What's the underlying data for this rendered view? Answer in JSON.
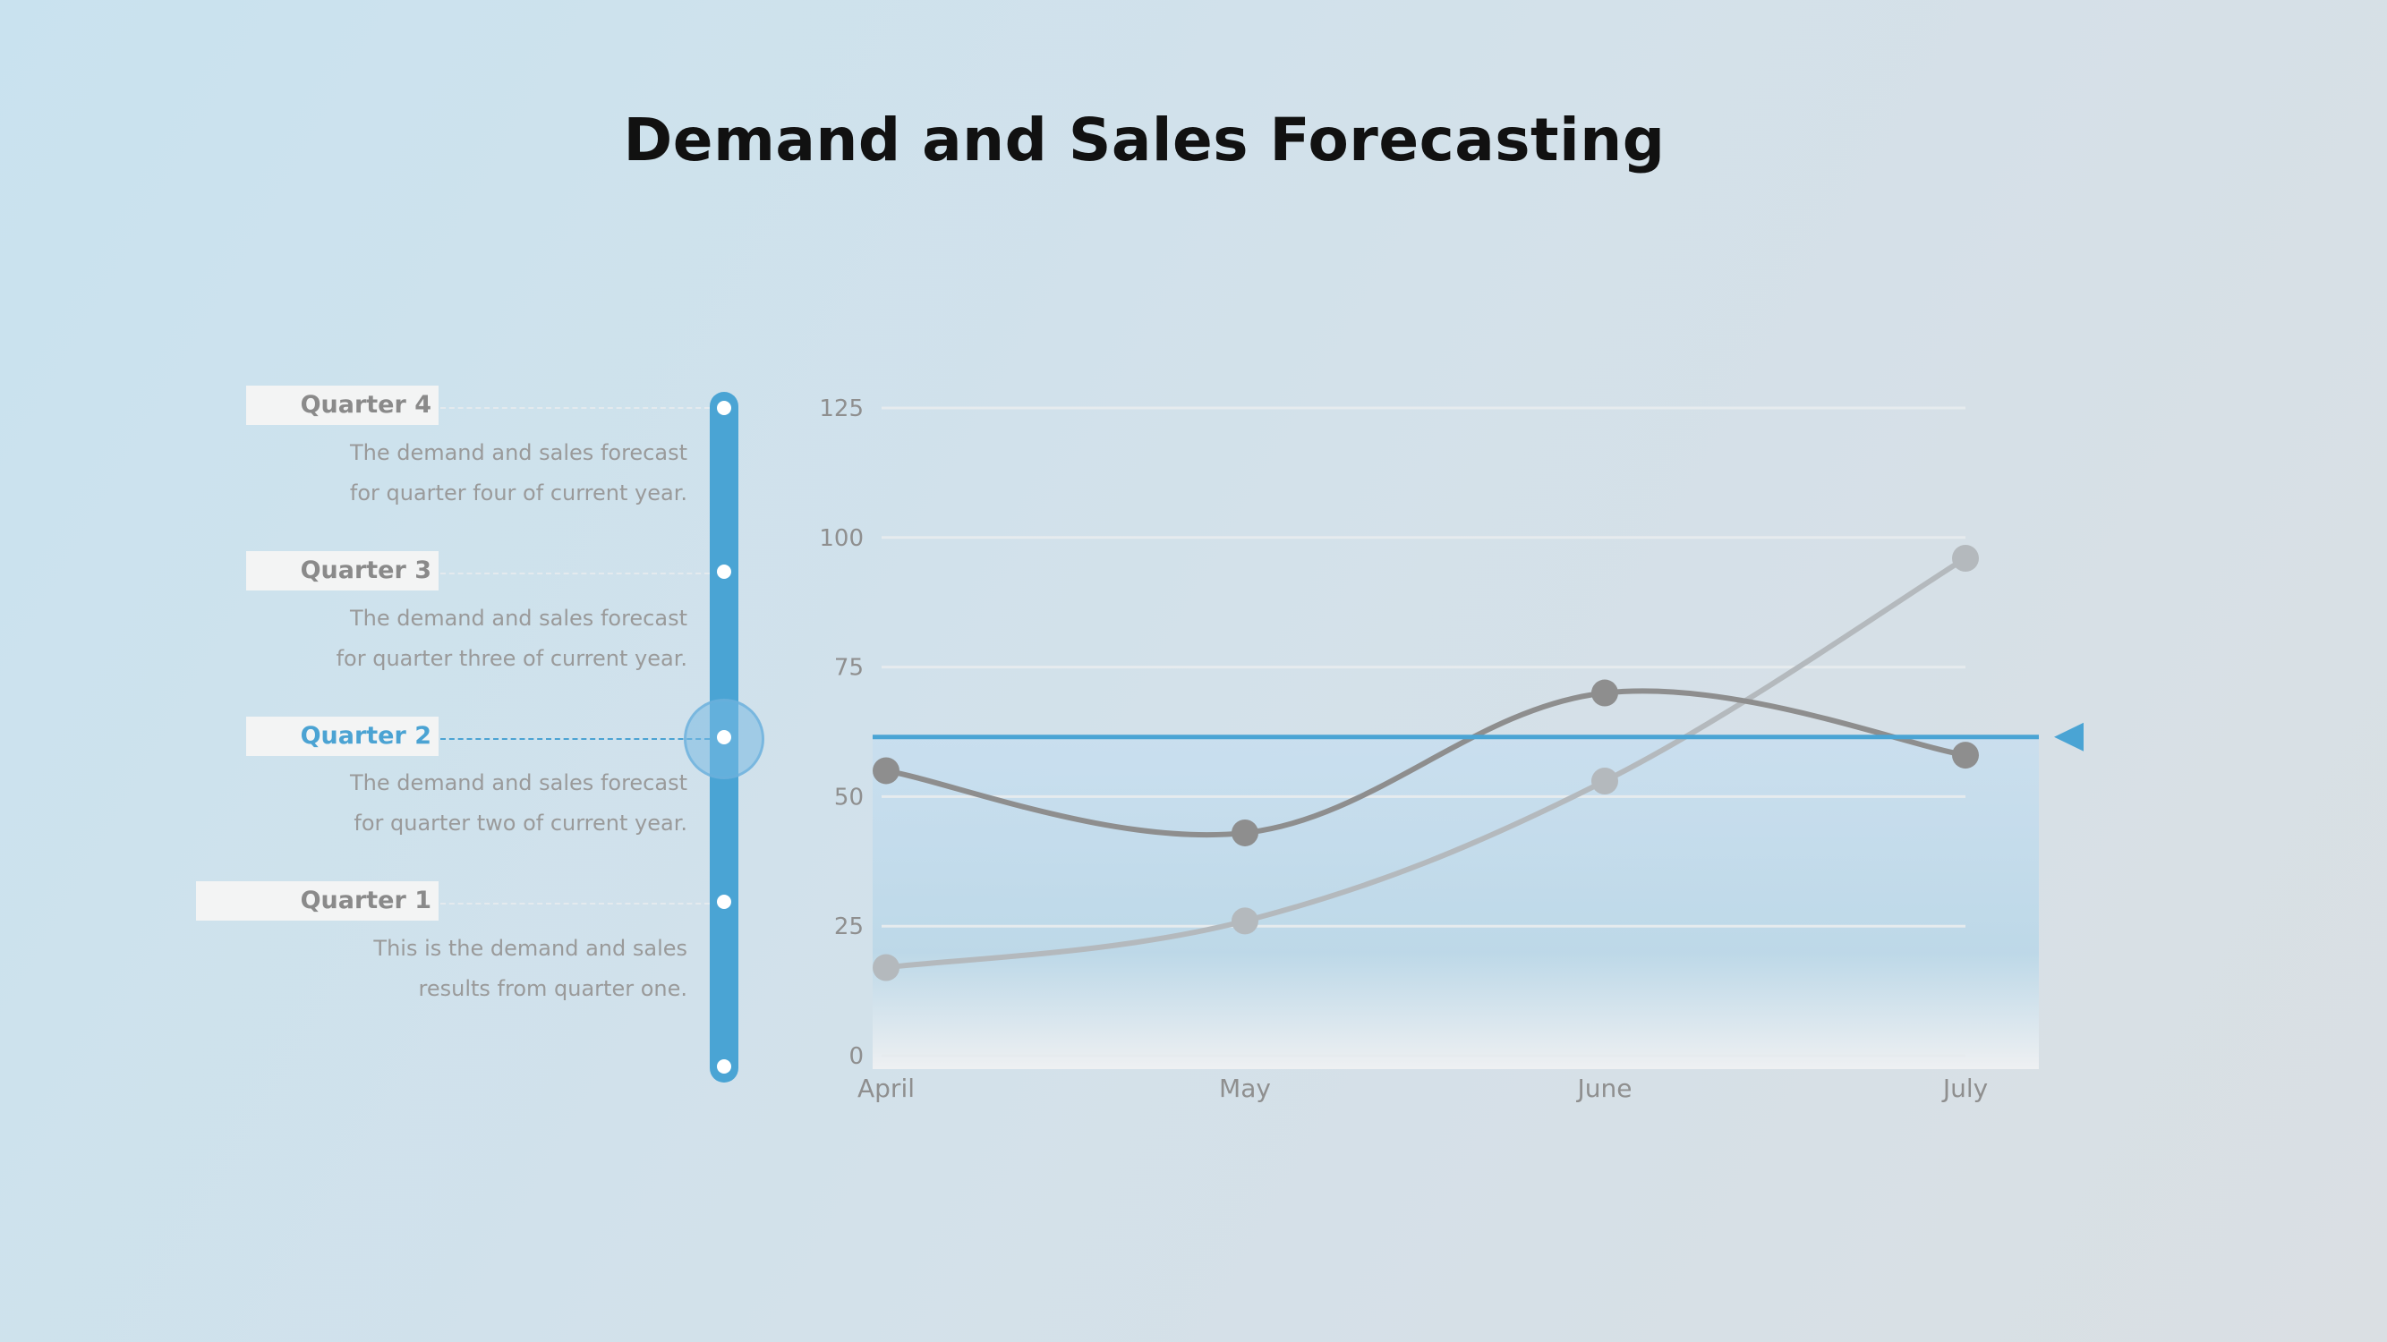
{
  "title": "Demand and Sales Forecasting",
  "quarters": [
    {
      "label": "Quarter 4",
      "desc_line1": "The demand and sales forecast",
      "desc_line2": "for quarter four of current year."
    },
    {
      "label": "Quarter 3",
      "desc_line1": "The demand and sales forecast",
      "desc_line2": "for quarter three of current year."
    },
    {
      "label": "Quarter 2",
      "desc_line1": "The demand and sales forecast",
      "desc_line2": "for quarter two of current year."
    },
    {
      "label": "Quarter 1",
      "desc_line1": "This is the demand and sales",
      "desc_line2": "results from quarter one."
    }
  ],
  "active_quarter": "Quarter 2",
  "colors": {
    "accent": "#4aa4d4",
    "series_dark": "#8e8e8e",
    "series_light": "#b4b9bd",
    "label_text": "#8a8a8a"
  },
  "chart_data": {
    "type": "line",
    "categories": [
      "April",
      "May",
      "June",
      "July"
    ],
    "series": [
      {
        "values": [
          55,
          43,
          70,
          58
        ]
      },
      {
        "values": [
          17,
          26,
          53,
          96
        ]
      }
    ],
    "yticks": [
      0,
      25,
      50,
      75,
      100,
      125
    ],
    "ylim": [
      0,
      125
    ],
    "grid": true,
    "threshold": 61.5
  }
}
